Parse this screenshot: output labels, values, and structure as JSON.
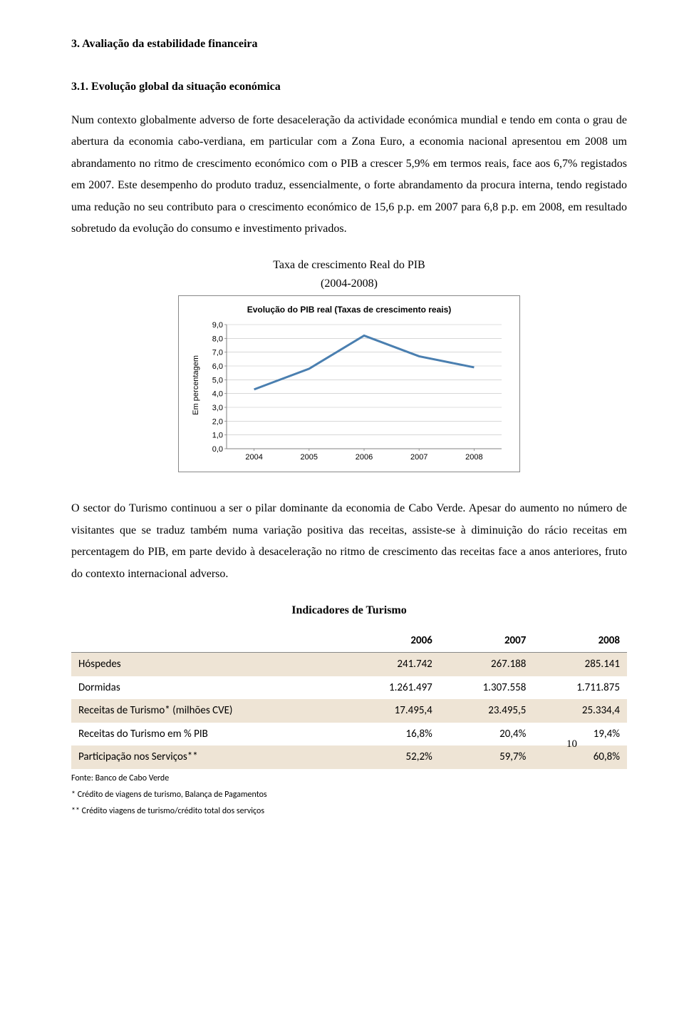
{
  "section": {
    "heading": "3.  Avaliação da estabilidade financeira",
    "subheading": "3.1. Evolução global da situação económica"
  },
  "paragraphs": {
    "p1": "Num contexto globalmente adverso de forte desaceleração da actividade económica mundial e tendo em conta o grau de abertura da economia cabo-verdiana, em particular com a Zona Euro, a economia nacional apresentou em 2008 um abrandamento no ritmo de crescimento económico com o PIB a crescer 5,9% em termos reais, face aos 6,7% registados em 2007. Este desempenho do produto traduz, essencialmente, o forte abrandamento da procura interna, tendo registado uma redução no seu contributo para o crescimento económico de 15,6 p.p. em 2007 para 6,8 p.p. em 2008, em resultado sobretudo da evolução do consumo e investimento privados.",
    "p2": "O sector do Turismo continuou a ser o pilar dominante da economia de Cabo Verde. Apesar do aumento no número de visitantes que se traduz também numa variação positiva das receitas, assiste-se à diminuição do rácio receitas em percentagem do PIB, em parte devido à desaceleração no ritmo de crescimento das receitas face a anos anteriores, fruto do contexto internacional adverso."
  },
  "chart": {
    "title_line1": "Taxa de crescimento Real do PIB",
    "title_line2": "(2004-2008)",
    "legend": "Evolução do PIB real (Taxas de crescimento reais)",
    "ylabel": "Em percentagem",
    "type": "line",
    "y_ticks": [
      "0,0",
      "1,0",
      "2,0",
      "3,0",
      "4,0",
      "5,0",
      "6,0",
      "7,0",
      "8,0",
      "9,0"
    ],
    "y_min": 0,
    "y_max": 9,
    "x_labels": [
      "2004",
      "2005",
      "2006",
      "2007",
      "2008"
    ],
    "values": [
      4.3,
      5.8,
      8.2,
      6.7,
      5.9
    ],
    "line_color": "#4a7fb0",
    "line_width": 3,
    "grid_color": "#bfbfbf",
    "axis_color": "#808080",
    "background_color": "#ffffff",
    "tick_fontsize": 11
  },
  "table": {
    "title": "Indicadores de Turismo",
    "headers": [
      "",
      "2006",
      "2007",
      "2008"
    ],
    "rows": [
      {
        "band": true,
        "cells": [
          "Hóspedes",
          "241.742",
          "267.188",
          "285.141"
        ]
      },
      {
        "band": false,
        "cells": [
          "Dormidas",
          "1.261.497",
          "1.307.558",
          "1.711.875"
        ]
      },
      {
        "band": true,
        "cells": [
          "Receitas de Turismo* (milhões CVE)",
          "17.495,4",
          "23.495,5",
          "25.334,4"
        ]
      },
      {
        "band": false,
        "cells": [
          "Receitas do Turismo em % PIB",
          "16,8%",
          "20,4%",
          "19,4%"
        ]
      },
      {
        "band": true,
        "cells": [
          "Participação nos Serviços**",
          "52,2%",
          "59,7%",
          "60,8%"
        ]
      }
    ],
    "footnotes": [
      "Fonte: Banco de Cabo Verde",
      "* Crédito de viagens de turismo, Balança de Pagamentos",
      "** Crédito viagens de turismo/crédito total dos serviços"
    ]
  },
  "page_number": "10"
}
